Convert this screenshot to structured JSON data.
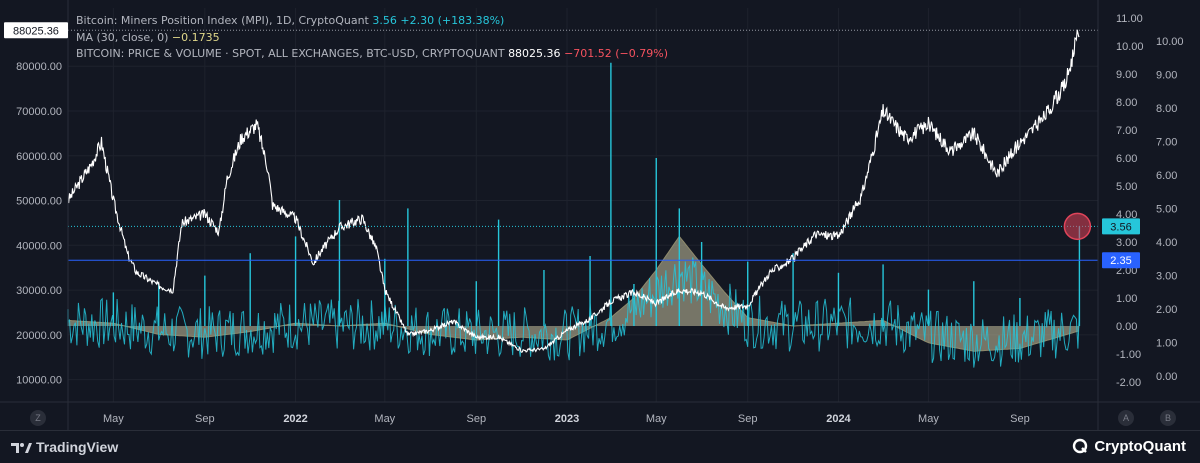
{
  "legend": {
    "line1_title": "Bitcoin: Miners Position Index (MPI), 1D, CryptoQuant",
    "line1_value": "3.56",
    "line1_change": "+2.30 (+183.38%)",
    "line2_title": "MA (30, close, 0)",
    "line2_value": "−0.1735",
    "line3_title": "BITCOIN: PRICE & VOLUME · SPOT, ALL EXCHANGES, BTC-USD, CRYPTOQUANT",
    "line3_value": "88025.36",
    "line3_change": "−701.52 (−0.79%)"
  },
  "footer": {
    "tradingview": "TradingView",
    "cryptoquant": "CryptoQuant"
  },
  "corner": {
    "left": "Z",
    "right_a": "A",
    "right_b": "B"
  },
  "colors": {
    "background": "#131722",
    "price": "#ffffff",
    "mpi": "#26c6da",
    "ma_fill": "#c8c3a0",
    "marker": "#e0445a",
    "blue_line": "#2962ff"
  },
  "chart_data": {
    "type": "line",
    "x_labels": [
      "May",
      "Sep",
      "2022",
      "May",
      "Sep",
      "2023",
      "May",
      "Sep",
      "2024",
      "May",
      "Sep"
    ],
    "left_axis": {
      "ticks": [
        "80000.00",
        "70000.00",
        "60000.00",
        "50000.00",
        "40000.00",
        "30000.00",
        "20000.00",
        "10000.00"
      ],
      "range": [
        5000,
        93000
      ]
    },
    "right_axis_mpi": {
      "ticks": [
        "11.00",
        "10.00",
        "9.00",
        "8.00",
        "7.00",
        "6.00",
        "5.00",
        "4.00",
        "3.00",
        "2.00",
        "1.00",
        "0.00",
        "-1.00",
        "-2.00"
      ]
    },
    "right_axis_secondary": {
      "ticks": [
        "10.00",
        "9.00",
        "8.00",
        "7.00",
        "6.00",
        "5.00",
        "4.00",
        "3.00",
        "2.00",
        "1.00",
        "0.00"
      ]
    },
    "price_label": "88025.36",
    "mpi_label": "3.56",
    "level_label": "2.35",
    "series": [
      {
        "name": "BITCOIN: PRICE & VOLUME · SPOT, ALL EXCHANGES, BTC-USD, CRYPTOQUANT",
        "points": [
          [
            "2021-03",
            50000
          ],
          [
            "2021-04",
            58000
          ],
          [
            "2021-04-15",
            63000
          ],
          [
            "2021-05",
            50000
          ],
          [
            "2021-05-20",
            38000
          ],
          [
            "2021-06",
            34000
          ],
          [
            "2021-07",
            31000
          ],
          [
            "2021-07-20",
            30000
          ],
          [
            "2021-08",
            45000
          ],
          [
            "2021-09",
            47000
          ],
          [
            "2021-09-20",
            43000
          ],
          [
            "2021-10",
            55000
          ],
          [
            "2021-10-20",
            64000
          ],
          [
            "2021-11-10",
            67000
          ],
          [
            "2021-11-25",
            57000
          ],
          [
            "2021-12",
            49000
          ],
          [
            "2022-01",
            46000
          ],
          [
            "2022-01-25",
            36000
          ],
          [
            "2022-02",
            38000
          ],
          [
            "2022-03",
            44000
          ],
          [
            "2022-04",
            46000
          ],
          [
            "2022-04-20",
            39000
          ],
          [
            "2022-05",
            30000
          ],
          [
            "2022-06",
            20000
          ],
          [
            "2022-07",
            21000
          ],
          [
            "2022-08",
            23000
          ],
          [
            "2022-09",
            19500
          ],
          [
            "2022-10",
            19500
          ],
          [
            "2022-11",
            16500
          ],
          [
            "2022-12",
            16800
          ],
          [
            "2023-01",
            21000
          ],
          [
            "2023-02",
            23500
          ],
          [
            "2023-03",
            27500
          ],
          [
            "2023-04",
            29500
          ],
          [
            "2023-05",
            27000
          ],
          [
            "2023-06",
            30000
          ],
          [
            "2023-07",
            29500
          ],
          [
            "2023-08",
            26000
          ],
          [
            "2023-09",
            26500
          ],
          [
            "2023-10",
            34000
          ],
          [
            "2023-11",
            37000
          ],
          [
            "2023-12",
            42500
          ],
          [
            "2024-01",
            42000
          ],
          [
            "2024-02",
            51000
          ],
          [
            "2024-03",
            70000
          ],
          [
            "2024-04",
            64000
          ],
          [
            "2024-05",
            67000
          ],
          [
            "2024-06",
            61000
          ],
          [
            "2024-07",
            65000
          ],
          [
            "2024-08",
            56000
          ],
          [
            "2024-09",
            63000
          ],
          [
            "2024-10",
            68000
          ],
          [
            "2024-11",
            76000
          ],
          [
            "2024-11-20",
            88025
          ]
        ]
      },
      {
        "name": "Bitcoin: Miners Position Index (MPI)",
        "spikes": [
          [
            "2021-03",
            0.6
          ],
          [
            "2021-05",
            1.2
          ],
          [
            "2021-07",
            1.5
          ],
          [
            "2021-09",
            1.8
          ],
          [
            "2021-11",
            2.6
          ],
          [
            "2022-01",
            3.2
          ],
          [
            "2022-03",
            4.5
          ],
          [
            "2022-05",
            2.4
          ],
          [
            "2022-06",
            4.2
          ],
          [
            "2022-09",
            1.6
          ],
          [
            "2022-10",
            3.8
          ],
          [
            "2022-12",
            2.0
          ],
          [
            "2023-02",
            2.5
          ],
          [
            "2023-03",
            9.4
          ],
          [
            "2023-04",
            1.5
          ],
          [
            "2023-05",
            6.0
          ],
          [
            "2023-06",
            4.2
          ],
          [
            "2023-07",
            3.0
          ],
          [
            "2023-09",
            2.3
          ],
          [
            "2023-11",
            2.6
          ],
          [
            "2024-01",
            1.9
          ],
          [
            "2024-03",
            2.2
          ],
          [
            "2024-05",
            1.3
          ],
          [
            "2024-07",
            1.6
          ],
          [
            "2024-09",
            1.0
          ],
          [
            "2024-11-20",
            3.56
          ]
        ]
      },
      {
        "name": "MA (30, close, 0)",
        "points": [
          [
            "2021-03",
            0.2
          ],
          [
            "2021-05",
            0.1
          ],
          [
            "2021-07",
            -0.3
          ],
          [
            "2021-09",
            -0.4
          ],
          [
            "2021-11",
            -0.2
          ],
          [
            "2022-01",
            0.1
          ],
          [
            "2022-03",
            0.0
          ],
          [
            "2022-05",
            0.1
          ],
          [
            "2022-07",
            -0.3
          ],
          [
            "2022-09",
            -0.5
          ],
          [
            "2022-11",
            -0.4
          ],
          [
            "2023-01",
            -0.5
          ],
          [
            "2023-03",
            0.3
          ],
          [
            "2023-04",
            1.0
          ],
          [
            "2023-05",
            2.0
          ],
          [
            "2023-06",
            3.2
          ],
          [
            "2023-07",
            2.2
          ],
          [
            "2023-08",
            1.2
          ],
          [
            "2023-09",
            0.3
          ],
          [
            "2023-11",
            0.0
          ],
          [
            "2024-01",
            0.1
          ],
          [
            "2024-03",
            0.2
          ],
          [
            "2024-05",
            -0.6
          ],
          [
            "2024-07",
            -0.9
          ],
          [
            "2024-09",
            -0.8
          ],
          [
            "2024-11-20",
            -0.17
          ]
        ]
      }
    ]
  }
}
